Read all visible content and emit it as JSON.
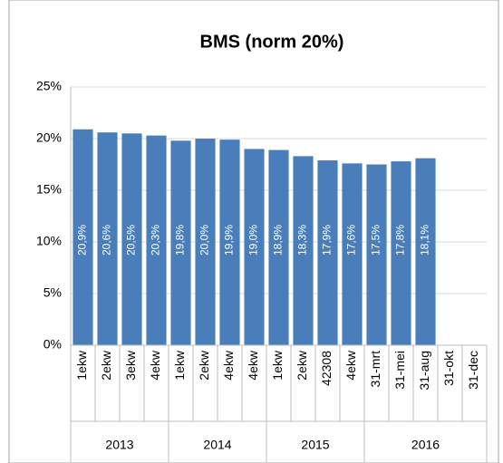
{
  "chart_data": {
    "type": "bar",
    "title": "BMS (norm 20%)",
    "categories": [
      "1ekw",
      "2ekw",
      "3ekw",
      "4ekw",
      "1ekw",
      "2ekw",
      "4ekw",
      "4ekw",
      "1ekw",
      "2ekw",
      "42308",
      "4ekw",
      "31-mrt",
      "31-mei",
      "31-aug",
      "31-okt",
      "31-dec"
    ],
    "groups": [
      {
        "label": "2013",
        "span": 4
      },
      {
        "label": "2014",
        "span": 4
      },
      {
        "label": "2015",
        "span": 4
      },
      {
        "label": "2016",
        "span": 5
      }
    ],
    "values": [
      20.9,
      20.6,
      20.5,
      20.3,
      19.8,
      20.0,
      19.9,
      19.0,
      18.9,
      18.3,
      17.9,
      17.6,
      17.5,
      17.8,
      18.1,
      null,
      null
    ],
    "value_labels": [
      "20,9%",
      "20,6%",
      "20,5%",
      "20,3%",
      "19,8%",
      "20,0%",
      "19,9%",
      "19,0%",
      "18,9%",
      "18,3%",
      "17,9%",
      "17,6%",
      "17,5%",
      "17,8%",
      "18,1%",
      null,
      null
    ],
    "color": "#4a7ebb",
    "ylim": [
      0,
      25
    ],
    "yticks": [
      {
        "value": 0,
        "label": "0%"
      },
      {
        "value": 5,
        "label": "5%"
      },
      {
        "value": 10,
        "label": "10%"
      },
      {
        "value": 15,
        "label": "15%"
      },
      {
        "value": 20,
        "label": "20%"
      },
      {
        "value": 25,
        "label": "25%"
      }
    ],
    "grid": true
  }
}
